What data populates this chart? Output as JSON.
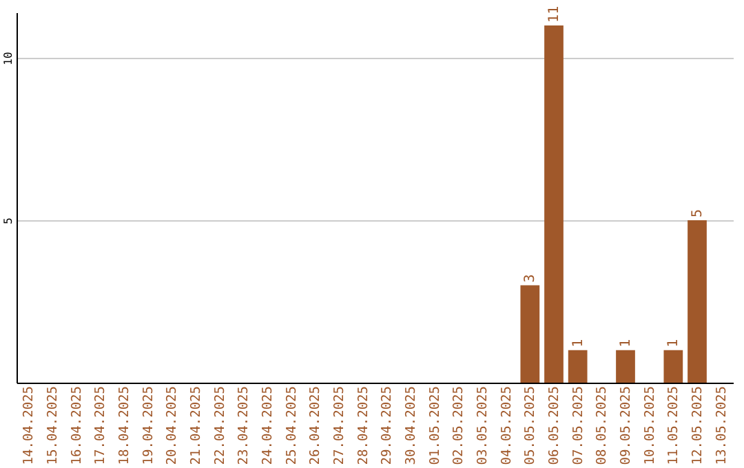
{
  "chart_data": {
    "type": "bar",
    "categories": [
      "14.04.2025",
      "15.04.2025",
      "16.04.2025",
      "17.04.2025",
      "18.04.2025",
      "19.04.2025",
      "20.04.2025",
      "21.04.2025",
      "22.04.2025",
      "23.04.2025",
      "24.04.2025",
      "25.04.2025",
      "26.04.2025",
      "27.04.2025",
      "28.04.2025",
      "29.04.2025",
      "30.04.2025",
      "01.05.2025",
      "02.05.2025",
      "03.05.2025",
      "04.05.2025",
      "05.05.2025",
      "06.05.2025",
      "07.05.2025",
      "08.05.2025",
      "09.05.2025",
      "10.05.2025",
      "11.05.2025",
      "12.05.2025",
      "13.05.2025"
    ],
    "values": [
      null,
      null,
      null,
      null,
      null,
      null,
      null,
      null,
      null,
      null,
      null,
      null,
      null,
      null,
      null,
      null,
      null,
      null,
      null,
      null,
      null,
      3,
      11,
      1,
      null,
      1,
      null,
      1,
      5,
      null
    ],
    "color": "#a0582a",
    "ylim": [
      0,
      11.4
    ],
    "yticks": [
      5,
      10
    ],
    "grid": "y",
    "data_labels": true
  }
}
